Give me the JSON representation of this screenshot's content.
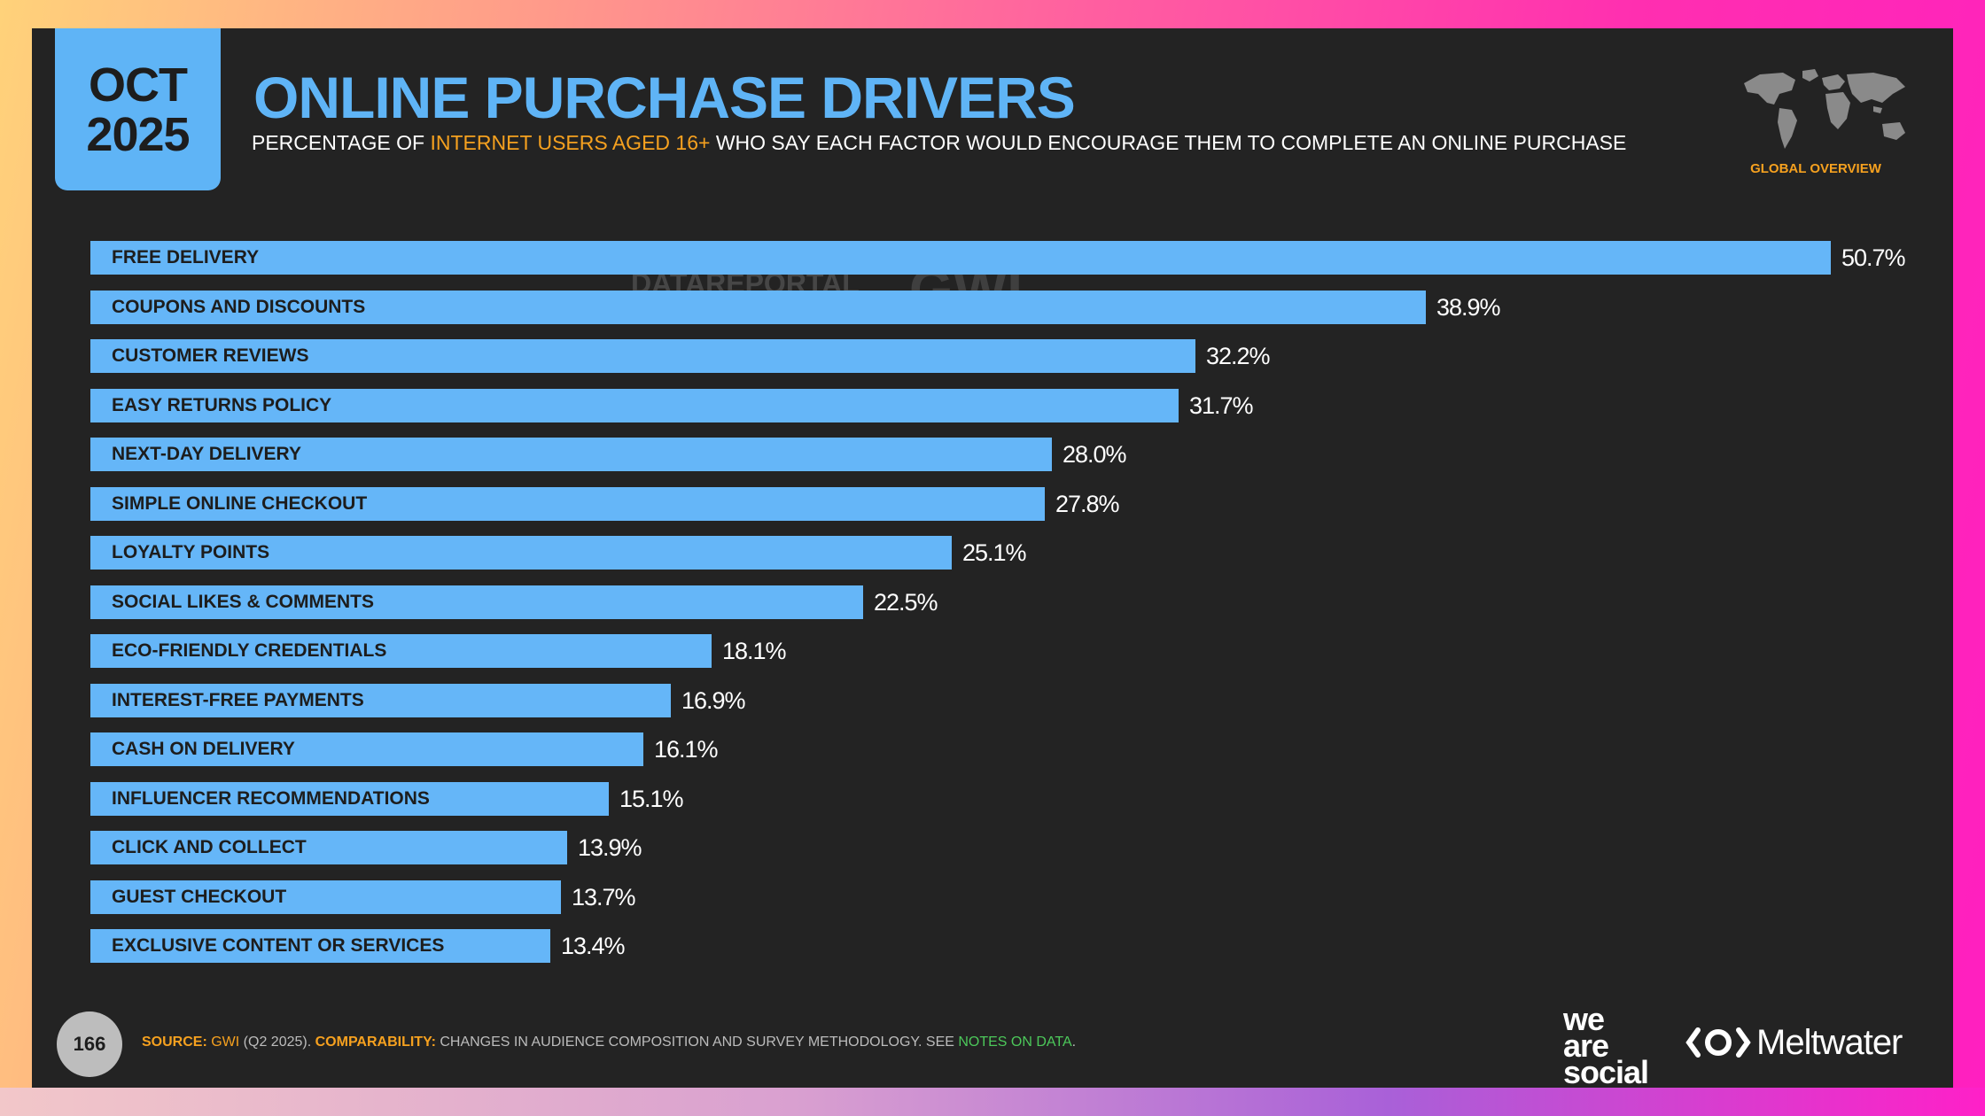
{
  "badge": {
    "month": "OCT",
    "year": "2025"
  },
  "header": {
    "title": "ONLINE PURCHASE DRIVERS",
    "subtitle_pre": "PERCENTAGE OF ",
    "subtitle_highlight": "INTERNET USERS AGED 16+",
    "subtitle_post": " WHO SAY EACH FACTOR WOULD ENCOURAGE THEM TO COMPLETE AN ONLINE PURCHASE",
    "region": "GLOBAL OVERVIEW"
  },
  "watermark": {
    "left": "DATAREPORTAL",
    "right": "GWI."
  },
  "footer": {
    "page": "166",
    "source_label": "SOURCE:",
    "source_org": "GWI",
    "source_period": " (Q2 2025). ",
    "comparability_label": "COMPARABILITY:",
    "comparability_text": " CHANGES IN AUDIENCE COMPOSITION AND SURVEY METHODOLOGY. SEE ",
    "notes_link": "NOTES ON DATA",
    "notes_end": ".",
    "brand_1": "we are social",
    "brand_1_lines": [
      "we",
      "are",
      "social"
    ],
    "brand_2": "Meltwater"
  },
  "icons": {
    "map": "world-map-icon",
    "meltwater": "meltwater-logo-icon"
  },
  "colors": {
    "accent": "#5fb4f6",
    "bar": "#65b6f8",
    "highlight": "#f6a11f",
    "background": "#232323"
  },
  "chart_data": {
    "type": "bar",
    "orientation": "horizontal",
    "title": "ONLINE PURCHASE DRIVERS",
    "categories": [
      "FREE DELIVERY",
      "COUPONS AND DISCOUNTS",
      "CUSTOMER REVIEWS",
      "EASY RETURNS POLICY",
      "NEXT-DAY DELIVERY",
      "SIMPLE ONLINE CHECKOUT",
      "LOYALTY POINTS",
      "SOCIAL LIKES & COMMENTS",
      "ECO-FRIENDLY CREDENTIALS",
      "INTEREST-FREE PAYMENTS",
      "CASH ON DELIVERY",
      "INFLUENCER RECOMMENDATIONS",
      "CLICK AND COLLECT",
      "GUEST CHECKOUT",
      "EXCLUSIVE CONTENT OR SERVICES"
    ],
    "values": [
      50.7,
      38.9,
      32.2,
      31.7,
      28.0,
      27.8,
      25.1,
      22.5,
      18.1,
      16.9,
      16.1,
      15.1,
      13.9,
      13.7,
      13.4
    ],
    "value_labels": [
      "50.7%",
      "38.9%",
      "32.2%",
      "31.7%",
      "28.0%",
      "27.8%",
      "25.1%",
      "22.5%",
      "18.1%",
      "16.9%",
      "16.1%",
      "15.1%",
      "13.9%",
      "13.7%",
      "13.4%"
    ],
    "unit": "%",
    "xlim": [
      0,
      50.7
    ],
    "grid": false,
    "legend": "none"
  }
}
